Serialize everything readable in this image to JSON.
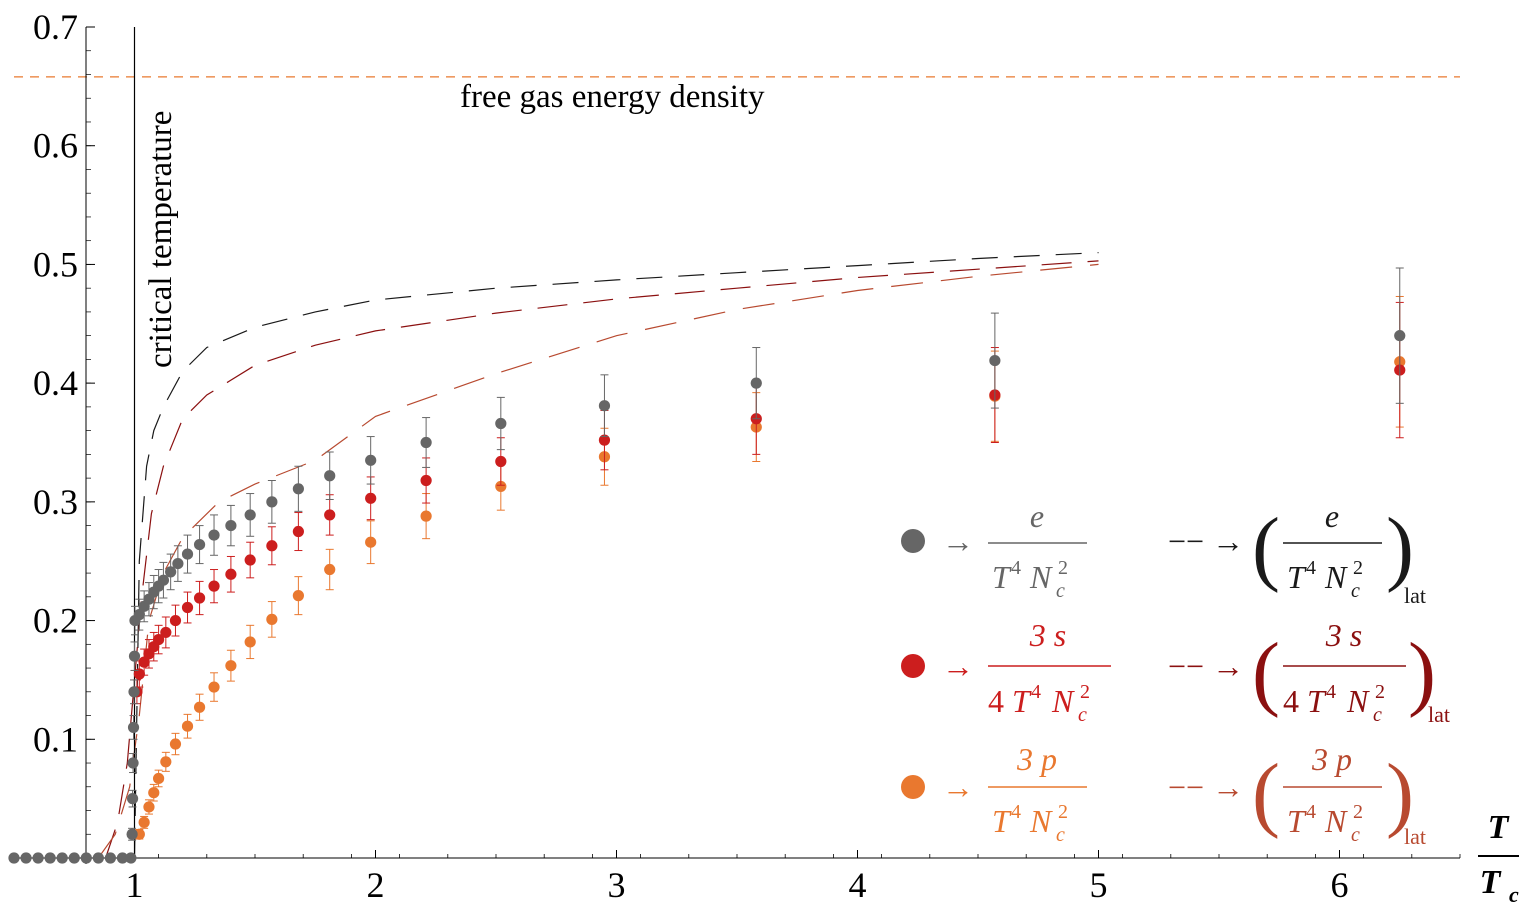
{
  "colors": {
    "e": "#666666",
    "s": "#cc1e1e",
    "p": "#e9782f",
    "lat_e": "#1a1a1a",
    "lat_s": "#8b1010",
    "lat_p": "#b84a30",
    "free_gas": "#e9782f"
  },
  "chart_data": {
    "type": "scatter",
    "title": "",
    "xlim": [
      0.5,
      6.5
    ],
    "ylim": [
      0,
      0.7
    ],
    "xticks": [
      1,
      2,
      3,
      4,
      5,
      6
    ],
    "yticks": [
      0.1,
      0.2,
      0.3,
      0.4,
      0.5,
      0.6,
      0.7
    ],
    "xlabel": {
      "num": "T",
      "den": "T",
      "sub": "c"
    },
    "grid": false,
    "reference_lines": [
      {
        "orientation": "horizontal",
        "value": 0.658,
        "label": "free gas energy density"
      },
      {
        "orientation": "vertical",
        "value": 1.0,
        "label": "critical temperature"
      }
    ],
    "legend": {
      "position": "right",
      "rows": [
        {
          "key": "e",
          "arrow": "→",
          "num": "e",
          "den_T": "T",
          "den_T_sup": "4",
          "den_N": "N",
          "den_N_sub": "c",
          "den_N_sup": "2",
          "dash_arrow": "−− →",
          "lat_sub": "lat"
        },
        {
          "key": "s",
          "arrow": "→",
          "num": "3 s",
          "den_pre": "4",
          "den_T": "T",
          "den_T_sup": "4",
          "den_N": "N",
          "den_N_sub": "c",
          "den_N_sup": "2",
          "dash_arrow": "−− →",
          "lat_sub": "lat"
        },
        {
          "key": "p",
          "arrow": "→",
          "num": "3 p",
          "den_T": "T",
          "den_T_sup": "4",
          "den_N": "N",
          "den_N_sub": "c",
          "den_N_sup": "2",
          "dash_arrow": "−− →",
          "lat_sub": "lat"
        }
      ]
    },
    "series": [
      {
        "name": "e/(T⁴Nc²)",
        "key": "e",
        "points": [
          [
            0.5,
            0.0,
            0
          ],
          [
            0.55,
            0.0,
            0
          ],
          [
            0.6,
            0.0,
            0
          ],
          [
            0.65,
            0.0,
            0
          ],
          [
            0.7,
            0.0,
            0
          ],
          [
            0.75,
            0.0,
            0
          ],
          [
            0.8,
            0.0,
            0
          ],
          [
            0.85,
            0.0,
            0
          ],
          [
            0.9,
            0.0,
            0
          ],
          [
            0.95,
            0.0,
            0
          ],
          [
            0.985,
            0.0,
            0
          ],
          [
            0.99,
            0.02,
            0.005
          ],
          [
            0.992,
            0.05,
            0.007
          ],
          [
            0.994,
            0.08,
            0.008
          ],
          [
            0.996,
            0.11,
            0.01
          ],
          [
            0.998,
            0.14,
            0.01
          ],
          [
            1.0,
            0.17,
            0.012
          ],
          [
            1.002,
            0.2,
            0.012
          ],
          [
            1.02,
            0.205,
            0.013
          ],
          [
            1.04,
            0.212,
            0.013
          ],
          [
            1.06,
            0.218,
            0.014
          ],
          [
            1.08,
            0.224,
            0.014
          ],
          [
            1.1,
            0.229,
            0.014
          ],
          [
            1.12,
            0.234,
            0.015
          ],
          [
            1.15,
            0.241,
            0.015
          ],
          [
            1.18,
            0.248,
            0.015
          ],
          [
            1.22,
            0.256,
            0.016
          ],
          [
            1.27,
            0.264,
            0.016
          ],
          [
            1.33,
            0.272,
            0.017
          ],
          [
            1.4,
            0.28,
            0.017
          ],
          [
            1.48,
            0.289,
            0.018
          ],
          [
            1.57,
            0.3,
            0.018
          ],
          [
            1.68,
            0.311,
            0.019
          ],
          [
            1.81,
            0.322,
            0.02
          ],
          [
            1.98,
            0.335,
            0.02
          ],
          [
            2.21,
            0.35,
            0.021
          ],
          [
            2.52,
            0.366,
            0.022
          ],
          [
            2.95,
            0.381,
            0.026
          ],
          [
            3.58,
            0.4,
            0.03
          ],
          [
            4.57,
            0.419,
            0.04
          ],
          [
            6.25,
            0.44,
            0.057
          ]
        ]
      },
      {
        "name": "3s/(4T⁴Nc²)",
        "key": "s",
        "points": [
          [
            1.01,
            0.14,
            0.01
          ],
          [
            1.02,
            0.155,
            0.011
          ],
          [
            1.04,
            0.165,
            0.011
          ],
          [
            1.06,
            0.172,
            0.012
          ],
          [
            1.08,
            0.178,
            0.012
          ],
          [
            1.1,
            0.184,
            0.012
          ],
          [
            1.13,
            0.19,
            0.013
          ],
          [
            1.17,
            0.2,
            0.013
          ],
          [
            1.22,
            0.211,
            0.013
          ],
          [
            1.27,
            0.219,
            0.014
          ],
          [
            1.33,
            0.229,
            0.014
          ],
          [
            1.4,
            0.239,
            0.015
          ],
          [
            1.48,
            0.251,
            0.015
          ],
          [
            1.57,
            0.263,
            0.016
          ],
          [
            1.68,
            0.275,
            0.016
          ],
          [
            1.81,
            0.289,
            0.017
          ],
          [
            1.98,
            0.303,
            0.018
          ],
          [
            2.21,
            0.318,
            0.019
          ],
          [
            2.52,
            0.334,
            0.02
          ],
          [
            2.95,
            0.352,
            0.025
          ],
          [
            3.58,
            0.37,
            0.03
          ],
          [
            4.57,
            0.39,
            0.04
          ],
          [
            6.25,
            0.411,
            0.057
          ]
        ]
      },
      {
        "name": "3p/(T⁴Nc²)",
        "key": "p",
        "points": [
          [
            1.02,
            0.02,
            0.004
          ],
          [
            1.04,
            0.03,
            0.005
          ],
          [
            1.06,
            0.043,
            0.006
          ],
          [
            1.08,
            0.055,
            0.007
          ],
          [
            1.1,
            0.067,
            0.007
          ],
          [
            1.13,
            0.081,
            0.008
          ],
          [
            1.17,
            0.096,
            0.009
          ],
          [
            1.22,
            0.111,
            0.01
          ],
          [
            1.27,
            0.127,
            0.011
          ],
          [
            1.33,
            0.144,
            0.012
          ],
          [
            1.4,
            0.162,
            0.013
          ],
          [
            1.48,
            0.182,
            0.014
          ],
          [
            1.57,
            0.201,
            0.015
          ],
          [
            1.68,
            0.221,
            0.016
          ],
          [
            1.81,
            0.243,
            0.017
          ],
          [
            1.98,
            0.266,
            0.018
          ],
          [
            2.21,
            0.288,
            0.019
          ],
          [
            2.52,
            0.313,
            0.02
          ],
          [
            2.95,
            0.338,
            0.024
          ],
          [
            3.58,
            0.363,
            0.029
          ],
          [
            4.57,
            0.389,
            0.038
          ],
          [
            6.25,
            0.418,
            0.055
          ]
        ]
      }
    ],
    "lattice_curves": [
      {
        "key": "lat_e",
        "points": [
          [
            1.0,
            0.0
          ],
          [
            1.02,
            0.25
          ],
          [
            1.05,
            0.33
          ],
          [
            1.08,
            0.36
          ],
          [
            1.12,
            0.38
          ],
          [
            1.2,
            0.41
          ],
          [
            1.3,
            0.43
          ],
          [
            1.5,
            0.447
          ],
          [
            1.75,
            0.46
          ],
          [
            2.0,
            0.47
          ],
          [
            2.5,
            0.48
          ],
          [
            3.0,
            0.487
          ],
          [
            3.5,
            0.493
          ],
          [
            4.0,
            0.499
          ],
          [
            4.5,
            0.505
          ],
          [
            5.0,
            0.51
          ]
        ]
      },
      {
        "key": "lat_s",
        "points": [
          [
            0.88,
            0.0
          ],
          [
            0.93,
            0.03
          ],
          [
            0.97,
            0.08
          ],
          [
            1.0,
            0.15
          ],
          [
            1.03,
            0.22
          ],
          [
            1.07,
            0.29
          ],
          [
            1.12,
            0.33
          ],
          [
            1.2,
            0.37
          ],
          [
            1.3,
            0.39
          ],
          [
            1.5,
            0.415
          ],
          [
            1.75,
            0.432
          ],
          [
            2.0,
            0.444
          ],
          [
            2.5,
            0.459
          ],
          [
            3.0,
            0.471
          ],
          [
            3.5,
            0.48
          ],
          [
            4.0,
            0.489
          ],
          [
            4.5,
            0.496
          ],
          [
            5.0,
            0.503
          ]
        ]
      },
      {
        "key": "lat_p",
        "points": [
          [
            0.85,
            0.0
          ],
          [
            0.92,
            0.02
          ],
          [
            0.98,
            0.06
          ],
          [
            1.02,
            0.12
          ],
          [
            1.06,
            0.2
          ],
          [
            1.12,
            0.24
          ],
          [
            1.2,
            0.27
          ],
          [
            1.35,
            0.3
          ],
          [
            1.5,
            0.315
          ],
          [
            1.75,
            0.335
          ],
          [
            2.0,
            0.372
          ],
          [
            2.5,
            0.408
          ],
          [
            3.0,
            0.44
          ],
          [
            3.5,
            0.462
          ],
          [
            4.0,
            0.478
          ],
          [
            4.5,
            0.49
          ],
          [
            5.0,
            0.5
          ]
        ]
      }
    ]
  }
}
